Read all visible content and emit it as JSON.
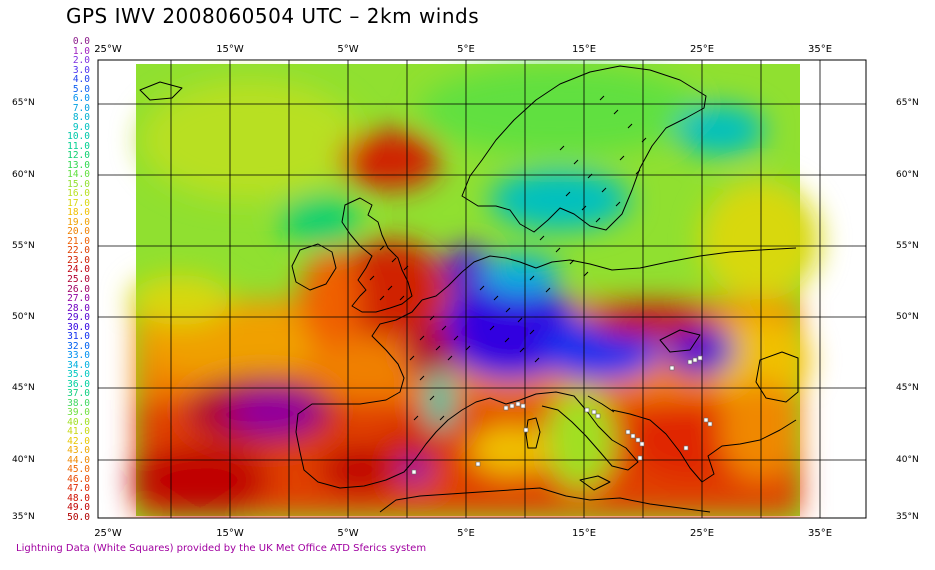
{
  "title": "GPS IWV 2008060504 UTC – 2km winds",
  "credit": "Lightning Data (White Squares) provided by the UK Met Office ATD Sferics system",
  "longitude_labels": [
    "25°W",
    "15°W",
    "5°W",
    "5°E",
    "15°E",
    "25°E",
    "35°E"
  ],
  "latitude_labels": [
    "65°N",
    "60°N",
    "55°N",
    "50°N",
    "45°N",
    "40°N",
    "35°N"
  ],
  "colorbar": [
    {
      "v": "0.0",
      "c": "#8a1a8a"
    },
    {
      "v": "1.0",
      "c": "#a020c0"
    },
    {
      "v": "2.0",
      "c": "#8030e0"
    },
    {
      "v": "3.0",
      "c": "#5030f0"
    },
    {
      "v": "4.0",
      "c": "#2040f0"
    },
    {
      "v": "5.0",
      "c": "#1060f0"
    },
    {
      "v": "6.0",
      "c": "#0090f0"
    },
    {
      "v": "7.0",
      "c": "#00a0e0"
    },
    {
      "v": "8.0",
      "c": "#00b0d0"
    },
    {
      "v": "9.0",
      "c": "#00c0c0"
    },
    {
      "v": "10.0",
      "c": "#00c8a8"
    },
    {
      "v": "11.0",
      "c": "#00d090"
    },
    {
      "v": "12.0",
      "c": "#10d070"
    },
    {
      "v": "13.0",
      "c": "#30d850"
    },
    {
      "v": "14.0",
      "c": "#60e040"
    },
    {
      "v": "15.0",
      "c": "#90e030"
    },
    {
      "v": "16.0",
      "c": "#b8e020"
    },
    {
      "v": "17.0",
      "c": "#d8d810"
    },
    {
      "v": "18.0",
      "c": "#f0c000"
    },
    {
      "v": "19.0",
      "c": "#f0a000"
    },
    {
      "v": "20.0",
      "c": "#f08000"
    },
    {
      "v": "21.0",
      "c": "#f06000"
    },
    {
      "v": "22.0",
      "c": "#e04000"
    },
    {
      "v": "23.0",
      "c": "#d02000"
    },
    {
      "v": "24.0",
      "c": "#c00010"
    },
    {
      "v": "25.0",
      "c": "#b00030"
    },
    {
      "v": "26.0",
      "c": "#a00060"
    },
    {
      "v": "27.0",
      "c": "#9000a0"
    },
    {
      "v": "28.0",
      "c": "#7000c0"
    },
    {
      "v": "29.0",
      "c": "#5000d0"
    },
    {
      "v": "30.0",
      "c": "#3000e0"
    },
    {
      "v": "31.0",
      "c": "#1030f0"
    },
    {
      "v": "32.0",
      "c": "#0060f0"
    },
    {
      "v": "33.0",
      "c": "#0090f0"
    },
    {
      "v": "34.0",
      "c": "#00b0e0"
    },
    {
      "v": "35.0",
      "c": "#00c8c0"
    },
    {
      "v": "36.0",
      "c": "#00d0a0"
    },
    {
      "v": "37.0",
      "c": "#10d080"
    },
    {
      "v": "38.0",
      "c": "#40d860"
    },
    {
      "v": "39.0",
      "c": "#70e040"
    },
    {
      "v": "40.0",
      "c": "#a0e020"
    },
    {
      "v": "41.0",
      "c": "#c8d810"
    },
    {
      "v": "42.0",
      "c": "#e8c800"
    },
    {
      "v": "43.0",
      "c": "#f0a800"
    },
    {
      "v": "44.0",
      "c": "#f08800"
    },
    {
      "v": "45.0",
      "c": "#f06800"
    },
    {
      "v": "46.0",
      "c": "#e84800"
    },
    {
      "v": "47.0",
      "c": "#e02800"
    },
    {
      "v": "48.0",
      "c": "#d01000"
    },
    {
      "v": "49.0",
      "c": "#c00000"
    },
    {
      "v": "50.0",
      "c": "#b00000"
    }
  ]
}
